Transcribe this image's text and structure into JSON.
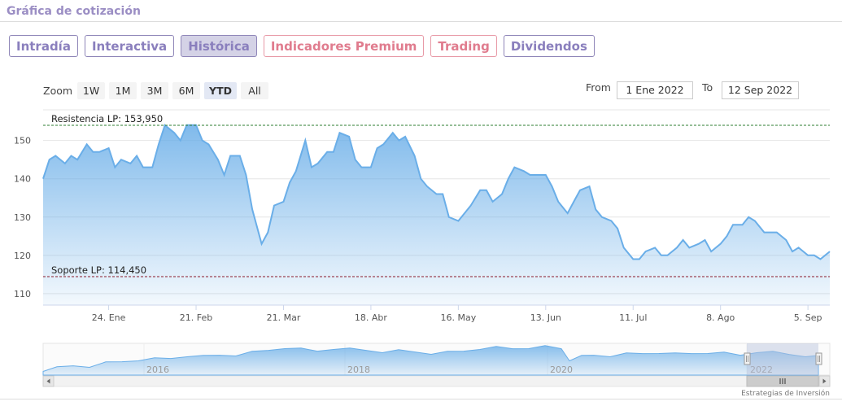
{
  "header": {
    "title": "Gráfica de cotización"
  },
  "tabs": [
    {
      "label": "Intradía",
      "active": false,
      "style": "normal"
    },
    {
      "label": "Interactiva",
      "active": false,
      "style": "normal"
    },
    {
      "label": "Histórica",
      "active": true,
      "style": "normal"
    },
    {
      "label": "Indicadores Premium",
      "active": false,
      "style": "pink"
    },
    {
      "label": "Trading",
      "active": false,
      "style": "pink"
    },
    {
      "label": "Dividendos",
      "active": false,
      "style": "normal"
    }
  ],
  "zoom": {
    "label": "Zoom",
    "buttons": [
      "1W",
      "1M",
      "3M",
      "6M",
      "YTD",
      "All"
    ],
    "selected": "YTD"
  },
  "range": {
    "from_label": "From",
    "from_value": "1 Ene 2022",
    "to_label": "To",
    "to_value": "12 Sep 2022"
  },
  "credit": "Estrategias de Inversión",
  "colors": {
    "accent": "#8a7fbd",
    "pink": "#e07c8e",
    "line": "#6aaee8",
    "resistance": "#2e7d32",
    "support": "#8b1a2b"
  },
  "chart_data": {
    "type": "area",
    "yticks": [
      110,
      120,
      130,
      140,
      150
    ],
    "ylim": [
      107,
      158
    ],
    "xlim": [
      "2022-01-03",
      "2022-09-12"
    ],
    "xticks": [
      {
        "date": "2022-01-24",
        "label": "24. Ene"
      },
      {
        "date": "2022-02-21",
        "label": "21. Feb"
      },
      {
        "date": "2022-03-21",
        "label": "21. Mar"
      },
      {
        "date": "2022-04-18",
        "label": "18. Abr"
      },
      {
        "date": "2022-05-16",
        "label": "16. May"
      },
      {
        "date": "2022-06-13",
        "label": "13. Jun"
      },
      {
        "date": "2022-07-11",
        "label": "11. Jul"
      },
      {
        "date": "2022-08-08",
        "label": "8. Ago"
      },
      {
        "date": "2022-09-05",
        "label": "5. Sep"
      }
    ],
    "levels": [
      {
        "label": "Resistencia LP: 153,950",
        "value": 153.95,
        "kind": "resistance"
      },
      {
        "label": "Soporte LP: 114,450",
        "value": 114.45,
        "kind": "support"
      }
    ],
    "series": [
      {
        "x": [
          "2022-01-03",
          "2022-01-05",
          "2022-01-07",
          "2022-01-10",
          "2022-01-12",
          "2022-01-14",
          "2022-01-17",
          "2022-01-19",
          "2022-01-21",
          "2022-01-24",
          "2022-01-26",
          "2022-01-28",
          "2022-01-31",
          "2022-02-02",
          "2022-02-04",
          "2022-02-07",
          "2022-02-09",
          "2022-02-11",
          "2022-02-14",
          "2022-02-16",
          "2022-02-18",
          "2022-02-21",
          "2022-02-23",
          "2022-02-25",
          "2022-02-28",
          "2022-03-02",
          "2022-03-04",
          "2022-03-07",
          "2022-03-09",
          "2022-03-11",
          "2022-03-14",
          "2022-03-16",
          "2022-03-18",
          "2022-03-21",
          "2022-03-23",
          "2022-03-25",
          "2022-03-28",
          "2022-03-30",
          "2022-04-01",
          "2022-04-04",
          "2022-04-06",
          "2022-04-08",
          "2022-04-11",
          "2022-04-13",
          "2022-04-15",
          "2022-04-18",
          "2022-04-20",
          "2022-04-22",
          "2022-04-25",
          "2022-04-27",
          "2022-04-29",
          "2022-05-02",
          "2022-05-04",
          "2022-05-06",
          "2022-05-09",
          "2022-05-11",
          "2022-05-13",
          "2022-05-16",
          "2022-05-18",
          "2022-05-20",
          "2022-05-23",
          "2022-05-25",
          "2022-05-27",
          "2022-05-30",
          "2022-06-01",
          "2022-06-03",
          "2022-06-06",
          "2022-06-08",
          "2022-06-10",
          "2022-06-13",
          "2022-06-15",
          "2022-06-17",
          "2022-06-20",
          "2022-06-22",
          "2022-06-24",
          "2022-06-27",
          "2022-06-29",
          "2022-07-01",
          "2022-07-04",
          "2022-07-06",
          "2022-07-08",
          "2022-07-11",
          "2022-07-13",
          "2022-07-15",
          "2022-07-18",
          "2022-07-20",
          "2022-07-22",
          "2022-07-25",
          "2022-07-27",
          "2022-07-29",
          "2022-08-01",
          "2022-08-03",
          "2022-08-05",
          "2022-08-08",
          "2022-08-10",
          "2022-08-12",
          "2022-08-15",
          "2022-08-17",
          "2022-08-19",
          "2022-08-22",
          "2022-08-24",
          "2022-08-26",
          "2022-08-29",
          "2022-08-31",
          "2022-09-02",
          "2022-09-05",
          "2022-09-07",
          "2022-09-09",
          "2022-09-12"
        ],
        "y": [
          140,
          145,
          146,
          144,
          146,
          145,
          149,
          147,
          147,
          148,
          143,
          145,
          144,
          146,
          143,
          143,
          149,
          154,
          152,
          150,
          154,
          154,
          150,
          149,
          145,
          141,
          146,
          146,
          141,
          132,
          123,
          126,
          133,
          134,
          139,
          142,
          150,
          143,
          144,
          147,
          147,
          152,
          151,
          145,
          143,
          143,
          148,
          149,
          152,
          150,
          151,
          146,
          140,
          138,
          136,
          136,
          130,
          129,
          131,
          133,
          137,
          137,
          134,
          136,
          140,
          143,
          142,
          141,
          141,
          141,
          138,
          134,
          131,
          134,
          137,
          138,
          132,
          130,
          129,
          127,
          122,
          119,
          119,
          121,
          122,
          120,
          120,
          122,
          124,
          122,
          123,
          124,
          121,
          123,
          125,
          128,
          128,
          130,
          129,
          126,
          126,
          126,
          124,
          121,
          122,
          120,
          120,
          119,
          121
        ]
      }
    ]
  }
}
